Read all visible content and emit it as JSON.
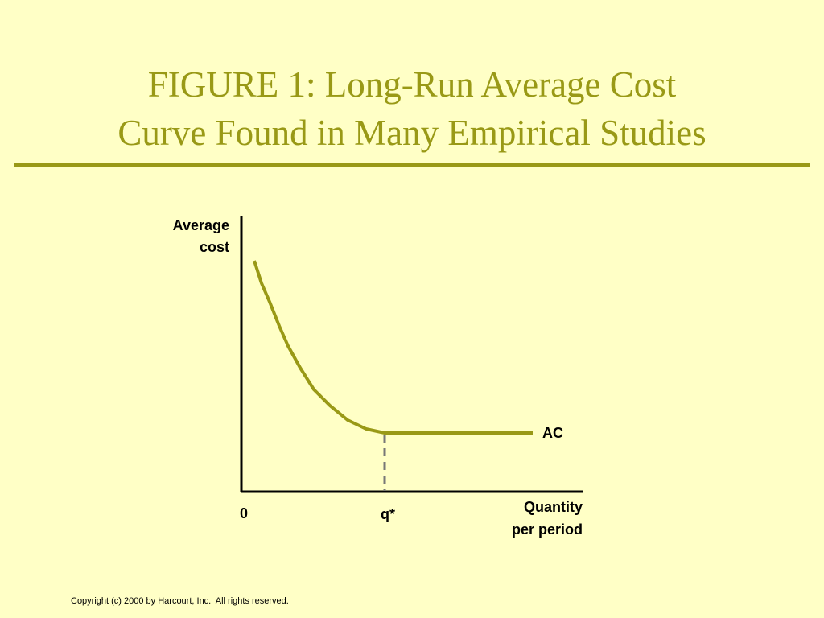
{
  "header": {
    "title_lines": [
      "FIGURE 1: Long-Run Average Cost",
      "Curve Found in Many Empirical Studies"
    ]
  },
  "diagram": {
    "y_axis_label": [
      "Average",
      "cost"
    ],
    "x_axis_label": [
      "Quantity",
      "per period"
    ],
    "origin_label": "0",
    "q_star_label": "q*",
    "curve_label": "AC"
  },
  "footer": {
    "copyright": "Copyright (c) 2000 by Harcourt, Inc.  All rights reserved."
  }
}
